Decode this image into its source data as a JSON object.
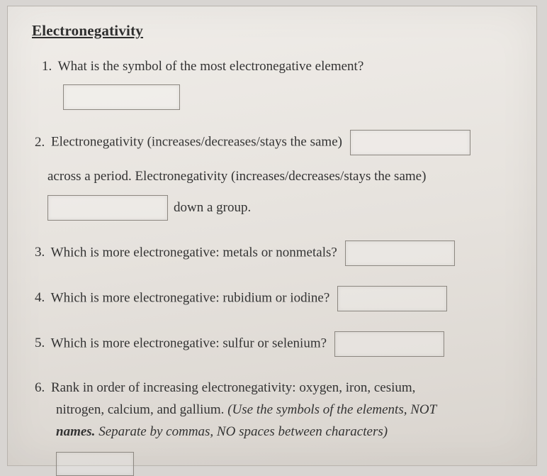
{
  "title": "Electronegativity",
  "q1": {
    "num": "1.",
    "text": "What is the symbol of the most electronegative element?"
  },
  "q2": {
    "num": "2.",
    "part1": "Electronegativity (increases/decreases/stays the same)",
    "part2": "across a period. Electronegativity (increases/decreases/stays the same)",
    "part3": "down a group."
  },
  "q3": {
    "num": "3.",
    "text": "Which is more electronegative: metals or nonmetals?"
  },
  "q4": {
    "num": "4.",
    "text": "Which is more electronegative: rubidium or iodine?"
  },
  "q5": {
    "num": "5.",
    "text": "Which is more electronegative: sulfur or selenium?"
  },
  "q6": {
    "num": "6.",
    "line1": "Rank in order of increasing electronegativity: oxygen, iron, cesium,",
    "line2a": "nitrogen, calcium, and gallium. ",
    "hint1": "(Use the symbols of the elements, NOT",
    "hint2": "names.",
    "hint3": " Separate by commas, NO spaces between characters)"
  },
  "colors": {
    "page_bg_top": "#f0ede9",
    "page_bg_bot": "#d9d4ce",
    "text": "#333333",
    "border": "#8d8881"
  }
}
